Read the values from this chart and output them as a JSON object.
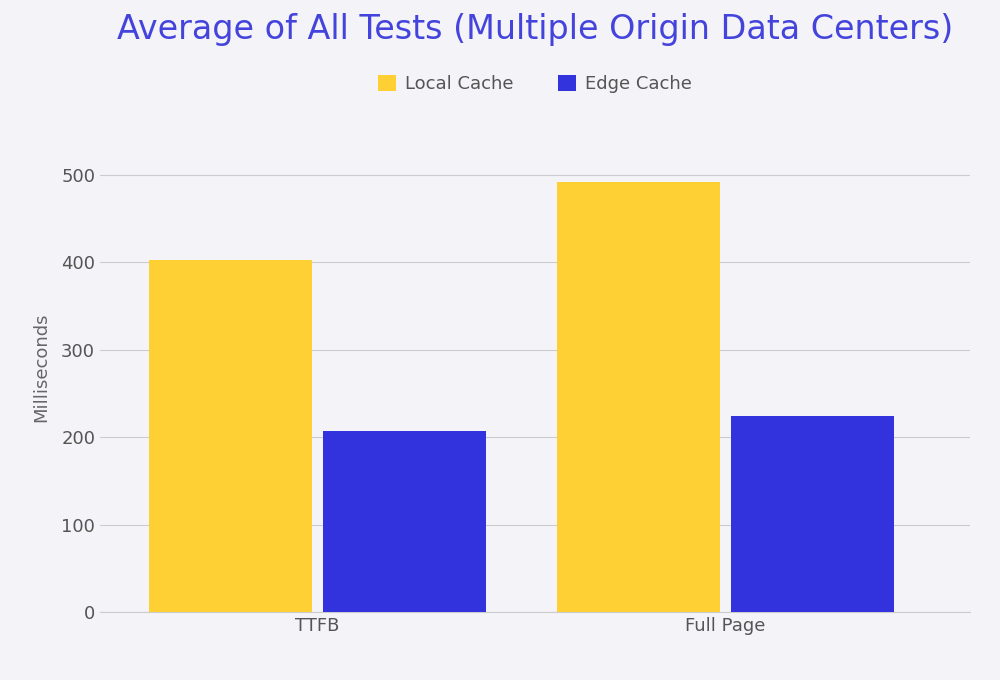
{
  "title": "Average of All Tests (Multiple Origin Data Centers)",
  "title_color": "#4444dd",
  "title_fontsize": 24,
  "title_fontweight": "normal",
  "ylabel": "Milliseconds",
  "ylabel_fontsize": 13,
  "ylabel_color": "#666666",
  "categories": [
    "TTFB",
    "Full Page"
  ],
  "local_cache_values": [
    403,
    492
  ],
  "edge_cache_values": [
    207,
    224
  ],
  "local_cache_color": "#FFD033",
  "edge_cache_color": "#3333DD",
  "legend_labels": [
    "Local Cache",
    "Edge Cache"
  ],
  "bar_width": 0.3,
  "ylim": [
    0,
    560
  ],
  "yticks": [
    0,
    100,
    200,
    300,
    400,
    500
  ],
  "background_color": "#f4f4f8",
  "grid_color": "#cccccc",
  "tick_label_fontsize": 13,
  "tick_label_color": "#555555",
  "legend_fontsize": 13,
  "x_positions": [
    0.25,
    1.0
  ],
  "xlim": [
    -0.15,
    1.45
  ]
}
